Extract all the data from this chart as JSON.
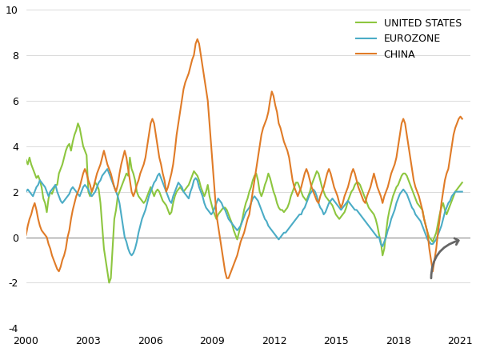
{
  "colors": {
    "us": "#8DC63F",
    "eurozone": "#4BACC6",
    "china": "#E07B27"
  },
  "legend_labels": [
    "UNITED STATES",
    "EUROZONE",
    "CHINA"
  ],
  "ylim": [
    -4,
    10
  ],
  "yticks": [
    -4,
    -2,
    0,
    2,
    4,
    6,
    8,
    10
  ],
  "xlim_start": 2000.0,
  "xlim_end": 2021.5,
  "xtick_years": [
    2000,
    2003,
    2006,
    2009,
    2012,
    2015,
    2018,
    2021
  ],
  "background_color": "#ffffff",
  "linewidth": 1.5,
  "arrow_color": "#666666"
}
